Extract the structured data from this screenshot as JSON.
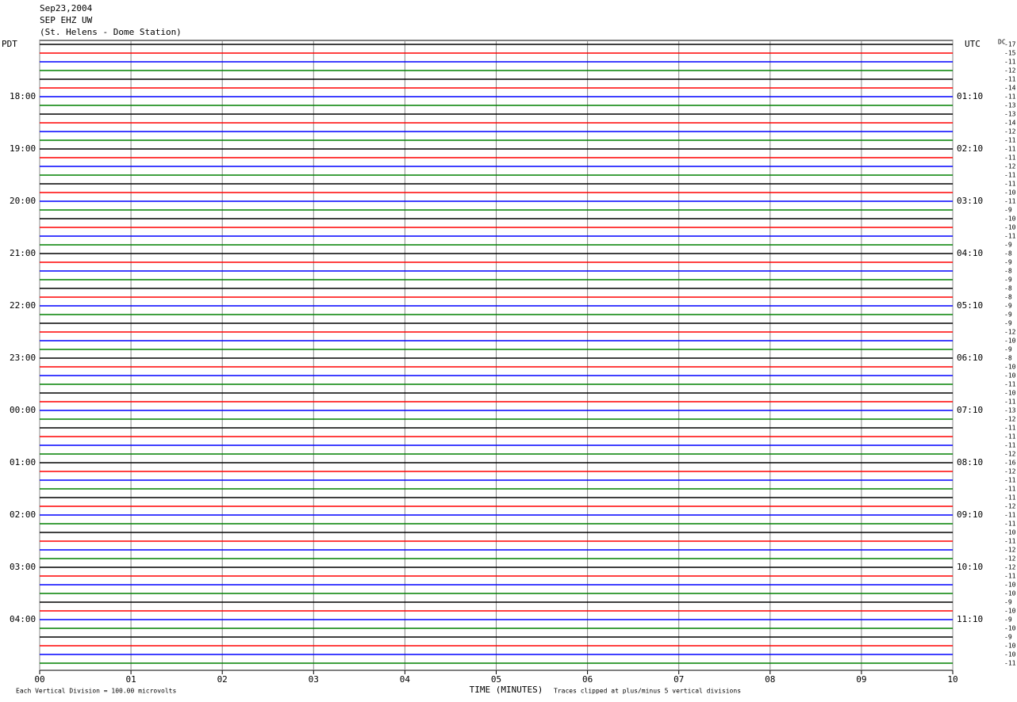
{
  "chart_data": {
    "type": "helicorder",
    "header": [
      "Sep23,2004",
      "SEP EHZ UW",
      "(St. Helens - Dome Station)"
    ],
    "left_title": "PDT",
    "right_title": "UTC",
    "dc_title": "DC",
    "xlabel": "TIME (MINUTES)",
    "footer_left": "Each Vertical Division =  100.00 microvolts",
    "footer_right": "Traces clipped at plus/minus 5 vertical divisions",
    "xlim": [
      0,
      10
    ],
    "xticks": [
      {
        "value": 0,
        "label": "00"
      },
      {
        "value": 1,
        "label": "01"
      },
      {
        "value": 2,
        "label": "02"
      },
      {
        "value": 3,
        "label": "03"
      },
      {
        "value": 4,
        "label": "04"
      },
      {
        "value": 5,
        "label": "05"
      },
      {
        "value": 6,
        "label": "06"
      },
      {
        "value": 7,
        "label": "07"
      },
      {
        "value": 8,
        "label": "08"
      },
      {
        "value": 9,
        "label": "09"
      },
      {
        "value": 10,
        "label": "10"
      }
    ],
    "trace_colors": [
      "#000000",
      "#ff0000",
      "#0000ff",
      "#008000"
    ],
    "left_labels": [
      null,
      null,
      null,
      null,
      null,
      null,
      "18:00",
      null,
      null,
      null,
      null,
      null,
      "19:00",
      null,
      null,
      null,
      null,
      null,
      "20:00",
      null,
      null,
      null,
      null,
      null,
      "21:00",
      null,
      null,
      null,
      null,
      null,
      "22:00",
      null,
      null,
      null,
      null,
      null,
      "23:00",
      null,
      null,
      null,
      null,
      null,
      "00:00",
      null,
      null,
      null,
      null,
      null,
      "01:00",
      null,
      null,
      null,
      null,
      null,
      "02:00",
      null,
      null,
      null,
      null,
      null,
      "03:00",
      null,
      null,
      null,
      null,
      null,
      "04:00",
      null,
      null,
      null,
      null,
      null
    ],
    "right_labels": [
      null,
      null,
      null,
      null,
      null,
      null,
      "01:10",
      null,
      null,
      null,
      null,
      null,
      "02:10",
      null,
      null,
      null,
      null,
      null,
      "03:10",
      null,
      null,
      null,
      null,
      null,
      "04:10",
      null,
      null,
      null,
      null,
      null,
      "05:10",
      null,
      null,
      null,
      null,
      null,
      "06:10",
      null,
      null,
      null,
      null,
      null,
      "07:10",
      null,
      null,
      null,
      null,
      null,
      "08:10",
      null,
      null,
      null,
      null,
      null,
      "09:10",
      null,
      null,
      null,
      null,
      null,
      "10:10",
      null,
      null,
      null,
      null,
      null,
      "11:10",
      null,
      null,
      null,
      null,
      null
    ],
    "dc_offsets": [
      -17,
      -15,
      -11,
      -12,
      -11,
      -14,
      -11,
      -13,
      -13,
      -14,
      -12,
      -11,
      -11,
      -11,
      -12,
      -11,
      -11,
      -10,
      -11,
      -9,
      -10,
      -10,
      -11,
      -9,
      -8,
      -9,
      -8,
      -9,
      -8,
      -8,
      -9,
      -9,
      -9,
      -12,
      -10,
      -9,
      -8,
      -10,
      -10,
      -11,
      -10,
      -11,
      -13,
      -12,
      -11,
      -11,
      -11,
      -12,
      -16,
      -12,
      -11,
      -11,
      -11,
      -12,
      -11,
      -11,
      -10,
      -11,
      -12,
      -12,
      -12,
      -11,
      -10,
      -10,
      -9,
      -10,
      -9,
      -10,
      -9,
      -10,
      -10,
      -11
    ]
  }
}
